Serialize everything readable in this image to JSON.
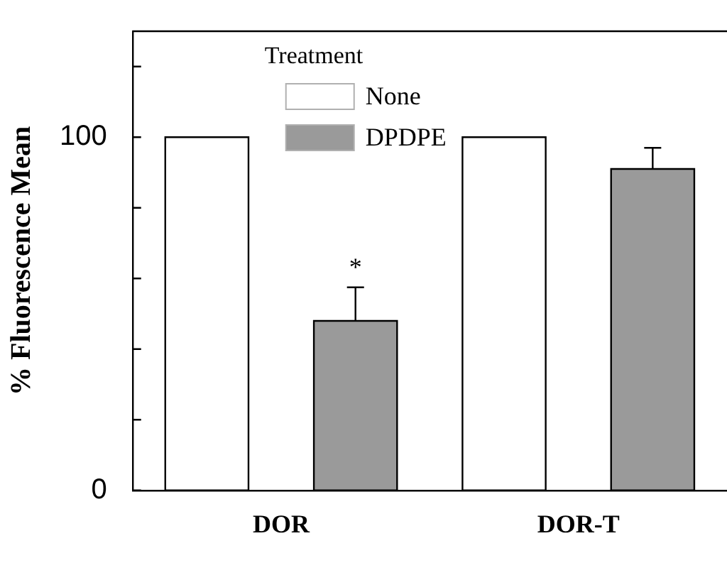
{
  "chart_data": {
    "type": "bar",
    "ylabel": "% Fluorescence Mean",
    "legend_title": "Treatment",
    "legend": "top",
    "categories": [
      "DOR",
      "DOR-T"
    ],
    "series": [
      {
        "name": "None",
        "color": "#ffffff",
        "values": [
          100,
          100
        ]
      },
      {
        "name": "DPDPE",
        "color": "#9a9a9a",
        "values": [
          48,
          91
        ],
        "errors": [
          9.5,
          6
        ]
      }
    ],
    "ylim": [
      0,
      130
    ],
    "yticks": [
      0,
      {
        "value": 20,
        "label": null
      },
      {
        "value": 40,
        "label": null
      },
      {
        "value": 60,
        "label": null
      },
      {
        "value": 80,
        "label": null
      },
      100,
      {
        "value": 120,
        "label": null
      }
    ],
    "annotations": [
      "*"
    ],
    "grid": false
  }
}
